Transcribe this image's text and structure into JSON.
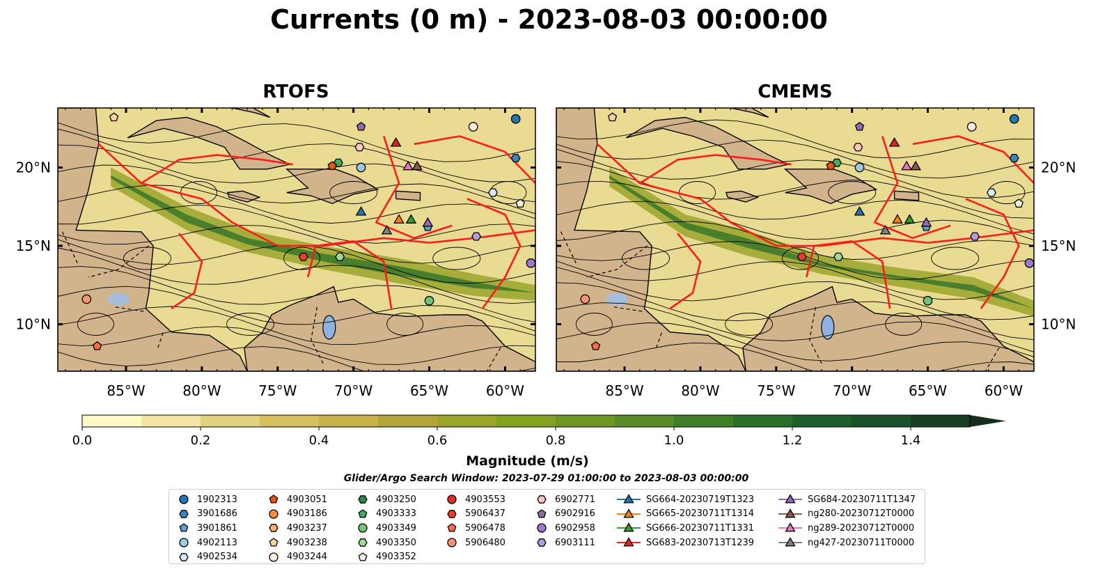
{
  "title": "Currents (0 m) - 2023-08-03 00:00:00",
  "panels": [
    {
      "title": "RTOFS"
    },
    {
      "title": "CMEMS"
    }
  ],
  "map_axes": {
    "x_ticks": [
      "85°W",
      "80°W",
      "75°W",
      "70°W",
      "65°W",
      "60°W"
    ],
    "y_ticks": [
      "20°N",
      "15°N",
      "10°N"
    ],
    "extent": {
      "lon": [
        -89.5,
        -58.0
      ],
      "lat": [
        7.0,
        23.8
      ]
    }
  },
  "colorbar": {
    "label": "Magnitude (m/s)",
    "ticks": [
      "0.0",
      "0.2",
      "0.4",
      "0.6",
      "0.8",
      "1.0",
      "1.2",
      "1.4"
    ],
    "range": [
      0,
      1.5
    ],
    "extend": "max",
    "colors": [
      "#fdf9c4",
      "#f2e6a0",
      "#e3d27c",
      "#d6c05e",
      "#c7b24a",
      "#b4a53a",
      "#9aa52a",
      "#84a01f",
      "#6e9622",
      "#568b26",
      "#3f7f28",
      "#2a6f2a",
      "#1d5f2b",
      "#17502a",
      "#163f23",
      "#172d1b"
    ]
  },
  "search_window": "Glider/Argo Search Window: 2023-07-29 01:00:00 to 2023-08-03 00:00:00",
  "legend": {
    "columns": [
      [
        {
          "label": "1902313",
          "marker": "circle",
          "color": "#1f77b4"
        },
        {
          "label": "3901686",
          "marker": "hexagon",
          "color": "#3a86c2"
        },
        {
          "label": "3901861",
          "marker": "pentagon",
          "color": "#5a9fd6"
        },
        {
          "label": "4902113",
          "marker": "circle",
          "color": "#9ecae1"
        },
        {
          "label": "4902534",
          "marker": "hexagon",
          "color": "#d6eaf8"
        }
      ],
      [
        {
          "label": "4903051",
          "marker": "pentagon",
          "color": "#e6550d"
        },
        {
          "label": "4903186",
          "marker": "circle",
          "color": "#fd8d3c"
        },
        {
          "label": "4903237",
          "marker": "hexagon",
          "color": "#fdae6b"
        },
        {
          "label": "4903238",
          "marker": "pentagon",
          "color": "#fdd0a2"
        },
        {
          "label": "4903244",
          "marker": "circle",
          "color": "#feedde"
        }
      ],
      [
        {
          "label": "4903250",
          "marker": "hexagon",
          "color": "#238b45"
        },
        {
          "label": "4903333",
          "marker": "pentagon",
          "color": "#41ab5d"
        },
        {
          "label": "4903349",
          "marker": "circle",
          "color": "#74c476"
        },
        {
          "label": "4903350",
          "marker": "hexagon",
          "color": "#a1d99b"
        },
        {
          "label": "4903352",
          "marker": "pentagon",
          "color": "#e5f5e0"
        }
      ],
      [
        {
          "label": "4903553",
          "marker": "circle",
          "color": "#de2d26"
        },
        {
          "label": "5906437",
          "marker": "hexagon",
          "color": "#ef3b2c"
        },
        {
          "label": "5906478",
          "marker": "pentagon",
          "color": "#fb6a4a"
        },
        {
          "label": "5906480",
          "marker": "circle",
          "color": "#fc9272"
        }
      ],
      [
        {
          "label": "6902771",
          "marker": "hexagon",
          "color": "#fcc5c0"
        },
        {
          "label": "6902916",
          "marker": "pentagon",
          "color": "#8c6bb1"
        },
        {
          "label": "6902958",
          "marker": "circle",
          "color": "#9e7ac9"
        },
        {
          "label": "6903111",
          "marker": "hexagon",
          "color": "#b39ddb"
        }
      ],
      [
        {
          "label": "SG664-20230719T1323",
          "marker": "triangle",
          "color": "#1f77b4",
          "line": true
        },
        {
          "label": "SG665-20230711T1314",
          "marker": "triangle",
          "color": "#ff7f0e",
          "line": true
        },
        {
          "label": "SG666-20230711T1331",
          "marker": "triangle",
          "color": "#2ca02c",
          "line": true
        },
        {
          "label": "SG683-20230713T1239",
          "marker": "triangle",
          "color": "#d62728",
          "line": true
        }
      ],
      [
        {
          "label": "SG684-20230711T1347",
          "marker": "triangle",
          "color": "#9467bd",
          "line": true
        },
        {
          "label": "ng280-20230712T0000",
          "marker": "triangle",
          "color": "#8c564b",
          "line": true
        },
        {
          "label": "ng289-20230712T0000",
          "marker": "triangle",
          "color": "#e377c2",
          "line": true
        },
        {
          "label": "ng427-20230711T0000",
          "marker": "triangle",
          "color": "#7f7f7f",
          "line": true
        }
      ]
    ]
  },
  "markers_on_map": [
    {
      "id": "1902313",
      "lon": -59.3,
      "lat": 23.1,
      "marker": "circle",
      "color": "#1f77b4"
    },
    {
      "id": "3901686",
      "lon": -59.3,
      "lat": 20.6,
      "marker": "hexagon",
      "color": "#3a86c2"
    },
    {
      "id": "4902534",
      "lon": -60.8,
      "lat": 18.4,
      "marker": "hexagon",
      "color": "#d6eaf8"
    },
    {
      "id": "4903352",
      "lon": -59.0,
      "lat": 17.7,
      "marker": "pentagon",
      "color": "#e5f5e0"
    },
    {
      "id": "6903111",
      "lon": -61.9,
      "lat": 15.6,
      "marker": "hexagon",
      "color": "#b39ddb"
    },
    {
      "id": "6902958",
      "lon": -58.3,
      "lat": 13.9,
      "marker": "circle",
      "color": "#9e7ac9"
    },
    {
      "id": "4903244",
      "lon": -62.1,
      "lat": 22.6,
      "marker": "circle",
      "color": "#feedde"
    },
    {
      "id": "6902916",
      "lon": -69.5,
      "lat": 22.6,
      "marker": "pentagon",
      "color": "#8c6bb1"
    },
    {
      "id": "6902771",
      "lon": -69.6,
      "lat": 21.3,
      "marker": "hexagon",
      "color": "#fcc5c0"
    },
    {
      "id": "4903333",
      "lon": -71.0,
      "lat": 20.3,
      "marker": "hexagon",
      "color": "#41ab5d"
    },
    {
      "id": "4903051",
      "lon": -71.4,
      "lat": 20.1,
      "marker": "pentagon",
      "color": "#e6550d"
    },
    {
      "id": "4902113",
      "lon": -69.5,
      "lat": 20.0,
      "marker": "circle",
      "color": "#9ecae1"
    },
    {
      "id": "4903238",
      "lon": -85.8,
      "lat": 23.2,
      "marker": "pentagon",
      "color": "#fdd0a2"
    },
    {
      "id": "5906480",
      "lon": -87.6,
      "lat": 11.6,
      "marker": "circle",
      "color": "#fc9272"
    },
    {
      "id": "5906478",
      "lon": -86.9,
      "lat": 8.6,
      "marker": "pentagon",
      "color": "#fb6a4a"
    },
    {
      "id": "5906437",
      "lon": -73.3,
      "lat": 14.3,
      "marker": "hexagon",
      "color": "#ef3b2c"
    },
    {
      "id": "4903350",
      "lon": -70.9,
      "lat": 14.3,
      "marker": "hexagon",
      "color": "#a1d99b"
    },
    {
      "id": "4903349",
      "lon": -65.0,
      "lat": 11.5,
      "marker": "circle",
      "color": "#74c476"
    },
    {
      "id": "SG683-20230713T1239",
      "lon": -67.2,
      "lat": 21.6,
      "marker": "triangle",
      "color": "#d62728"
    },
    {
      "id": "ng289-20230712T0000",
      "lon": -66.4,
      "lat": 20.1,
      "marker": "triangle",
      "color": "#e377c2"
    },
    {
      "id": "ng280-20230712T0000",
      "lon": -65.8,
      "lat": 20.1,
      "marker": "triangle",
      "color": "#8c564b"
    },
    {
      "id": "SG664-20230719T1323",
      "lon": -69.5,
      "lat": 17.2,
      "marker": "triangle",
      "color": "#1f77b4"
    },
    {
      "id": "SG665-20230711T1314",
      "lon": -67.0,
      "lat": 16.7,
      "marker": "triangle",
      "color": "#ff7f0e"
    },
    {
      "id": "SG666-20230711T1331",
      "lon": -66.2,
      "lat": 16.7,
      "marker": "triangle",
      "color": "#2ca02c"
    },
    {
      "id": "ng427-20230711T0000",
      "lon": -67.8,
      "lat": 16.0,
      "marker": "triangle",
      "color": "#7f7f7f"
    },
    {
      "id": "3901861",
      "lon": -65.1,
      "lat": 16.2,
      "marker": "pentagon",
      "color": "#5a9fd6"
    },
    {
      "id": "SG684-20230711T1347",
      "lon": -65.1,
      "lat": 16.5,
      "marker": "triangle",
      "color": "#9467bd"
    }
  ]
}
